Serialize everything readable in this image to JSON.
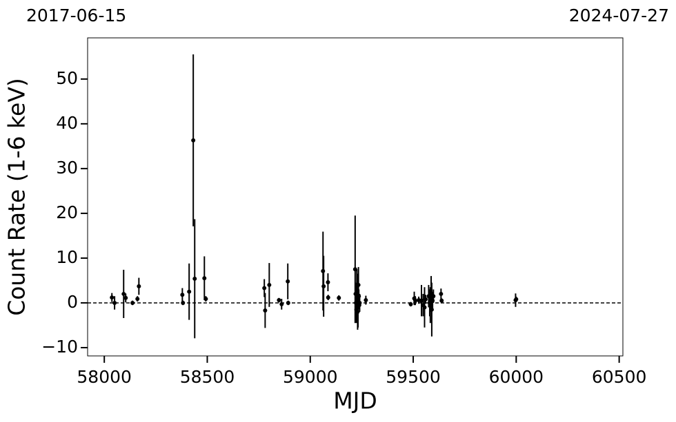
{
  "chart_data": {
    "type": "scatter",
    "annotations": [
      "2017-06-15",
      "2024-07-27"
    ],
    "xlabel": "MJD",
    "ylabel": "Count Rate (1-6 keV)",
    "xlim": [
      57919,
      60518
    ],
    "ylim": [
      -11.85,
      59.2
    ],
    "xticks": [
      58000,
      58500,
      59000,
      59500,
      60000,
      60500
    ],
    "yticks": [
      {
        "value": -10,
        "label": "−10"
      },
      0,
      10,
      20,
      30,
      40,
      50
    ],
    "hline": 0,
    "series": [
      {
        "color": "#000000",
        "x": [
          58037,
          58050,
          58094,
          58104,
          58137,
          58161,
          58168,
          58379,
          58382,
          58412,
          58432,
          58439,
          58486,
          58493,
          58777,
          58781,
          58801,
          58848,
          58861,
          58891,
          58893,
          59062,
          59065,
          59086,
          59087,
          59139,
          59218,
          59220,
          59222,
          59224,
          59226,
          59228,
          59230,
          59232,
          59234,
          59236,
          59238,
          59240,
          59270,
          59488,
          59505,
          59510,
          59527,
          59540,
          59548,
          59555,
          59560,
          59575,
          59580,
          59583,
          59587,
          59590,
          59594,
          59598,
          59635,
          59638,
          59997,
          60000
        ],
        "values": [
          1.2,
          0,
          2,
          1.1,
          0,
          0.9,
          3.7,
          1.8,
          0,
          2.5,
          36.3,
          5.4,
          5.5,
          0.9,
          3.3,
          -1.7,
          4,
          0.6,
          -0.3,
          4.8,
          0,
          7.1,
          3.7,
          4.6,
          1.2,
          1.1,
          7.5,
          2,
          0,
          -1.5,
          4,
          1,
          -2,
          0.5,
          4,
          1.5,
          -0.5,
          0,
          0.6,
          -0.3,
          1,
          0.5,
          0.6,
          0.5,
          -0.5,
          -1,
          0.8,
          1.5,
          0,
          -0.5,
          2,
          -1.5,
          0.5,
          1.5,
          2,
          0.5,
          0.6,
          0.8
        ],
        "errors": [
          1,
          1.5,
          5.4,
          1,
          0.5,
          0.6,
          1.9,
          1.5,
          0.5,
          6.3,
          19.2,
          13.3,
          4.9,
          0.6,
          2,
          3.9,
          4.9,
          0.5,
          1.2,
          4,
          0.5,
          8.8,
          6.8,
          2,
          0.6,
          0.6,
          12,
          2.5,
          4,
          3,
          3.5,
          2,
          4,
          6,
          4,
          1.5,
          1,
          2,
          1,
          0.5,
          1.5,
          1,
          0.8,
          3.5,
          2.5,
          4.5,
          1,
          2.5,
          3,
          4,
          4,
          6,
          2,
          1.5,
          1.2,
          0.5,
          1.5,
          0.6
        ]
      }
    ]
  }
}
